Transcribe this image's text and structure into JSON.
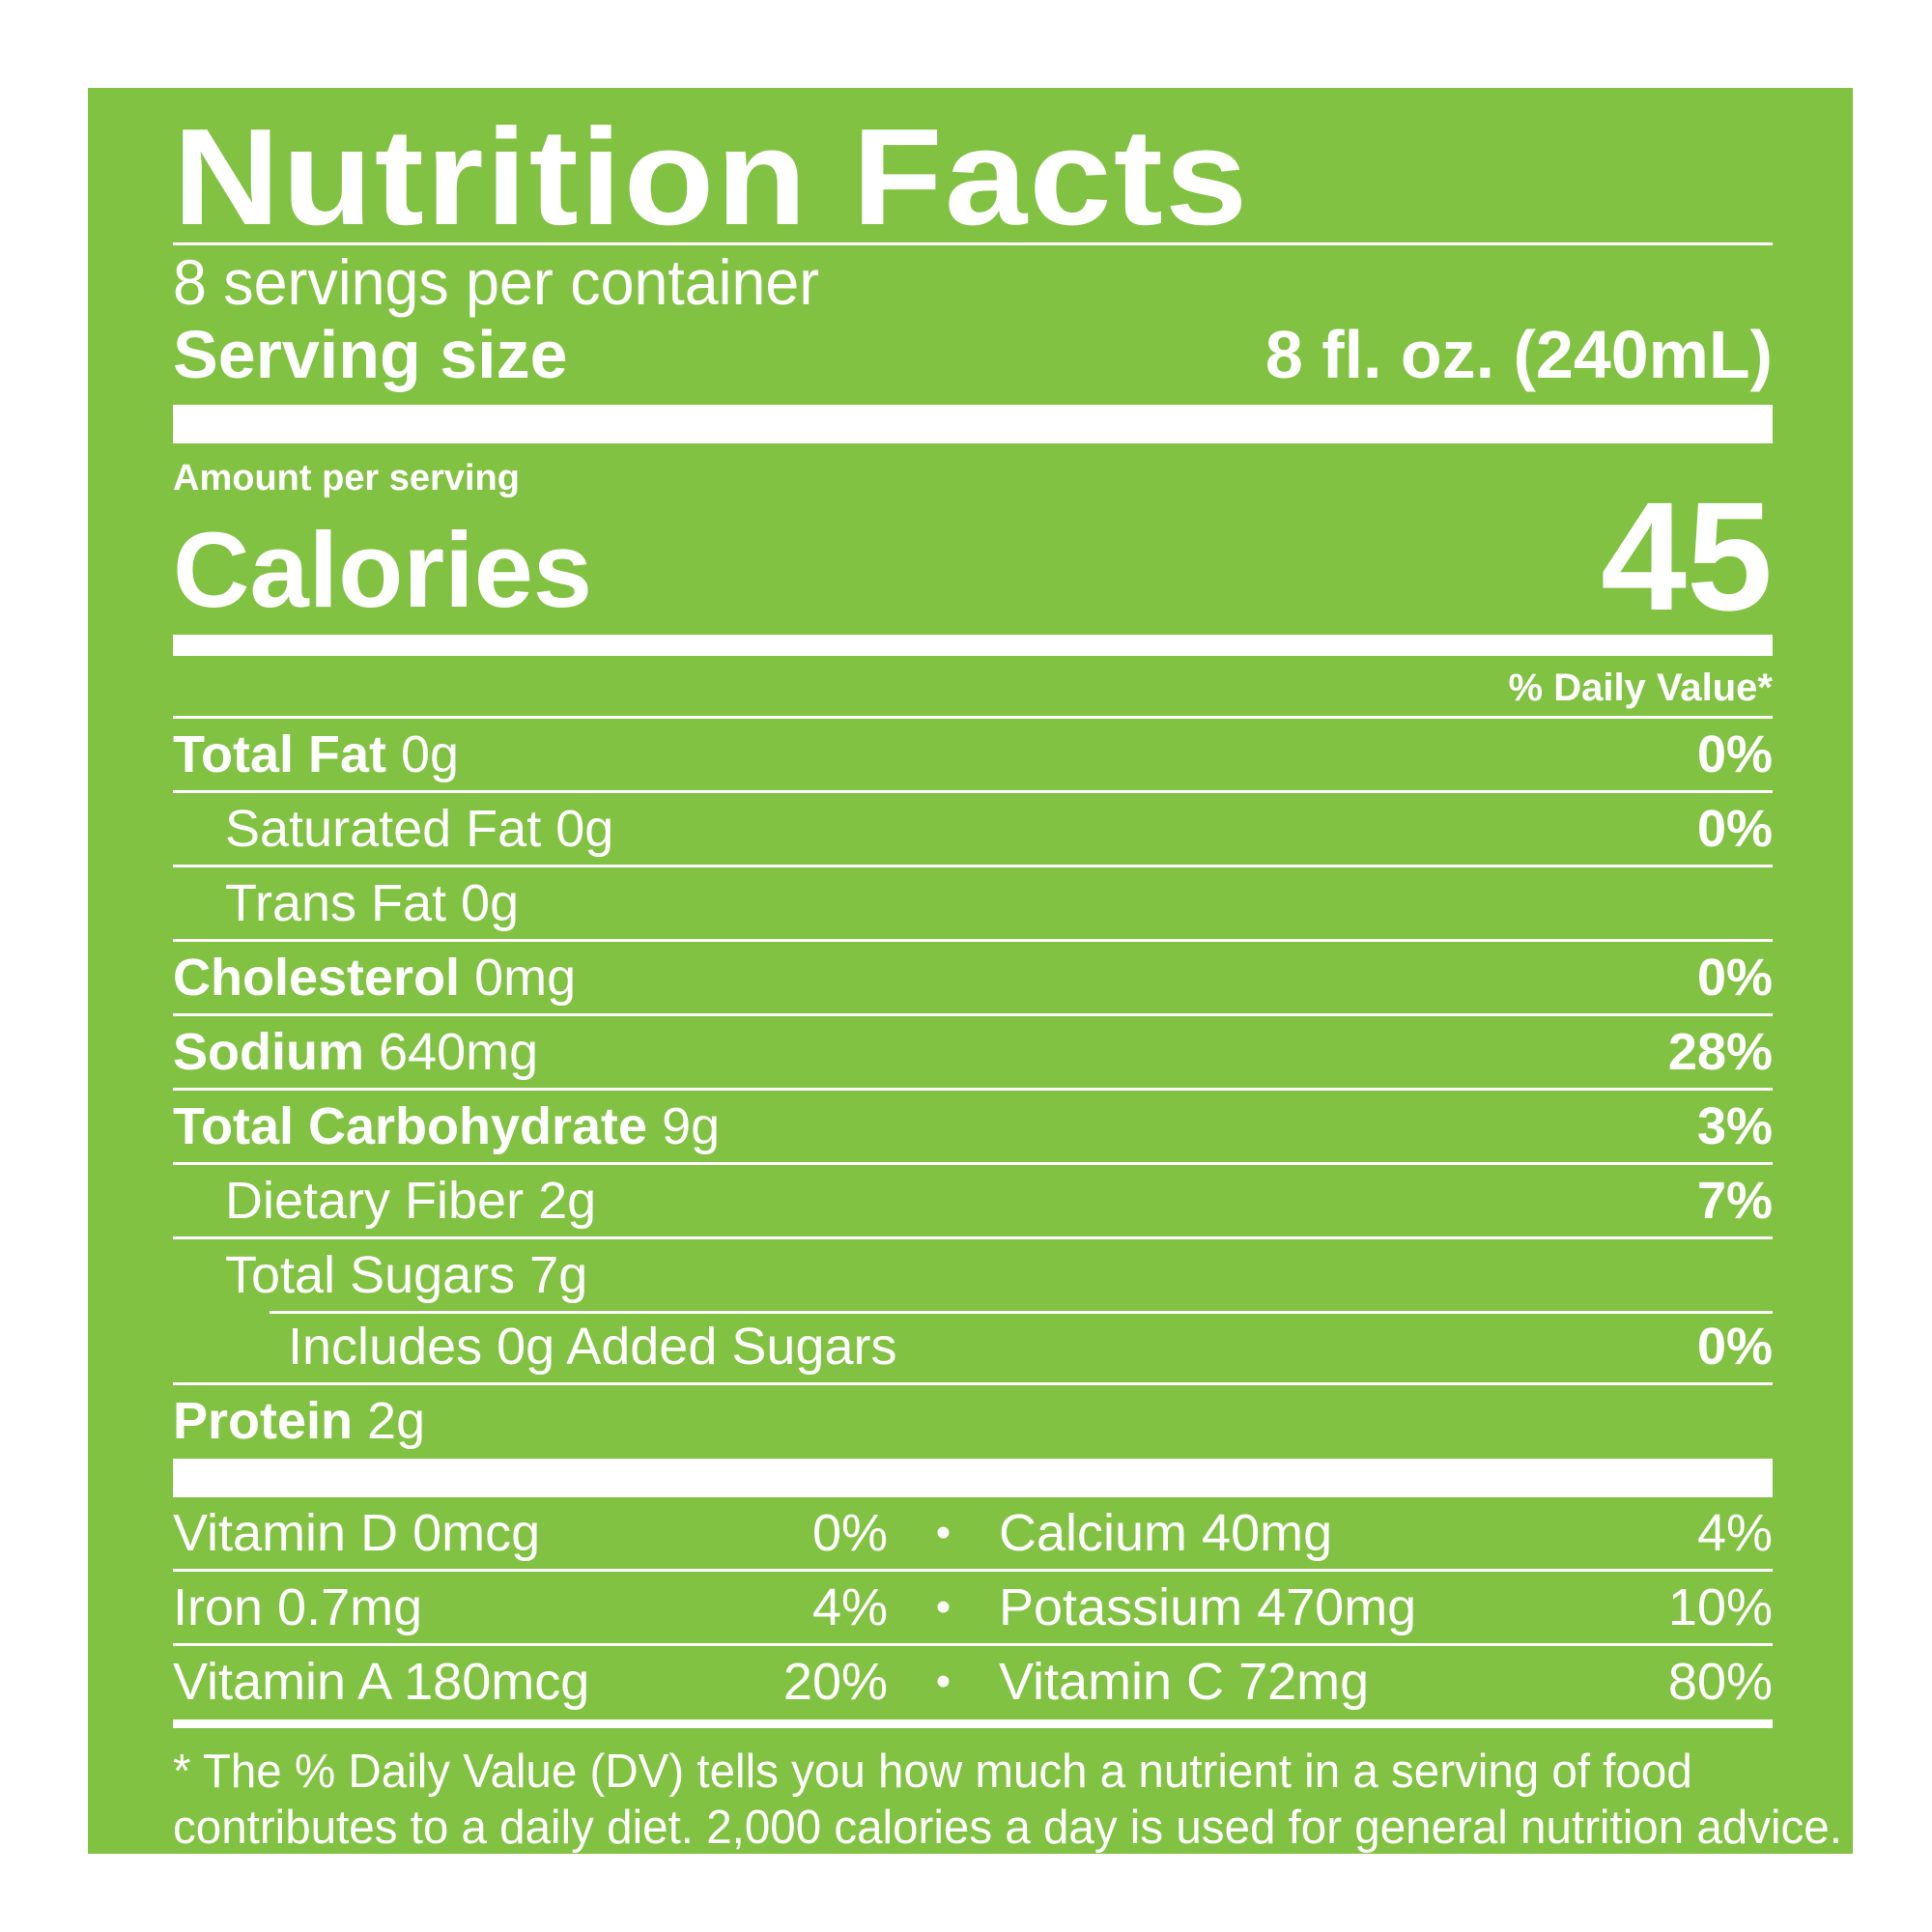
{
  "colors": {
    "panel": "#82c243",
    "text": "#ffffff",
    "background": "#ffffff"
  },
  "label": {
    "title": "Nutrition Facts",
    "servings_per_container": "8 servings per container",
    "serving_size_label": "Serving size",
    "serving_size_value": "8 fl. oz. (240mL)",
    "amount_per_serving": "Amount per serving",
    "calories_label": "Calories",
    "calories_value": "45",
    "daily_value_header": "% Daily Value*",
    "nutrients": [
      {
        "name": "Total Fat",
        "amount": "0g",
        "dv": "0%"
      },
      {
        "name": "Saturated Fat 0g",
        "amount": "",
        "dv": "0%"
      },
      {
        "name": "Trans Fat 0g",
        "amount": "",
        "dv": ""
      },
      {
        "name": "Cholesterol",
        "amount": "0mg",
        "dv": "0%"
      },
      {
        "name": "Sodium",
        "amount": "640mg",
        "dv": "28%"
      },
      {
        "name": "Total Carbohydrate",
        "amount": "9g",
        "dv": "3%"
      },
      {
        "name": "Dietary Fiber 2g",
        "amount": "",
        "dv": "7%"
      },
      {
        "name": "Total Sugars 7g",
        "amount": "",
        "dv": ""
      },
      {
        "name": "Includes 0g Added Sugars",
        "amount": "",
        "dv": "0%"
      },
      {
        "name": "Protein",
        "amount": "2g",
        "dv": ""
      }
    ],
    "vitamins": [
      {
        "left_name": "Vitamin D 0mcg",
        "left_dv": "0%",
        "bullet": "•",
        "right_name": "Calcium 40mg",
        "right_dv": "4%"
      },
      {
        "left_name": "Iron 0.7mg",
        "left_dv": "4%",
        "bullet": "•",
        "right_name": "Potassium 470mg",
        "right_dv": "10%"
      },
      {
        "left_name": "Vitamin A 180mcg",
        "left_dv": "20%",
        "bullet": "•",
        "right_name": "Vitamin C 72mg",
        "right_dv": "80%"
      }
    ],
    "footnote_line1": "* The % Daily Value (DV) tells you how much a nutrient in a serving of food",
    "footnote_line2": "contributes to a daily diet. 2,000 calories a day is used for general nutrition advice."
  }
}
